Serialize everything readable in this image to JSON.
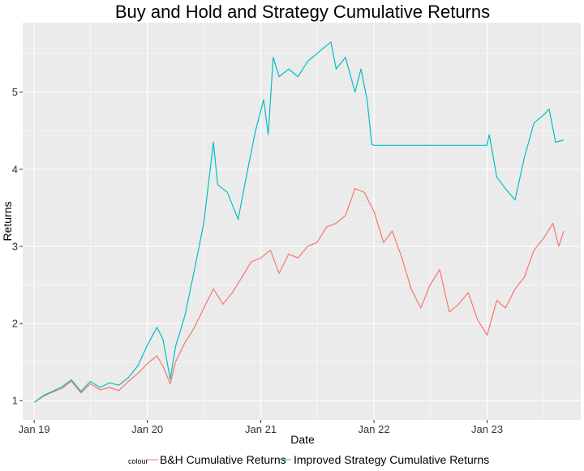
{
  "chart_data": {
    "type": "line",
    "title": "Buy and Hold and Strategy Cumulative Returns",
    "xlabel": "Date",
    "ylabel": "Returns",
    "x_ticks": [
      "Jan 19",
      "Jan 20",
      "Jan 21",
      "Jan 22",
      "Jan 23"
    ],
    "y_ticks": [
      "1",
      "2",
      "3",
      "4",
      "5"
    ],
    "xlim": [
      "2018-11-25",
      "2023-10-30"
    ],
    "ylim": [
      0.75,
      5.9
    ],
    "grid": true,
    "legend": {
      "title": "colour",
      "position": "bottom",
      "entries": [
        "B&H Cumulative Returns",
        "Improved Strategy Cumulative Returns"
      ]
    },
    "series": [
      {
        "name": "B&H Cumulative Returns",
        "color": "#F8766D",
        "points": [
          [
            "2019-01-02",
            0.98
          ],
          [
            "2019-02-01",
            1.06
          ],
          [
            "2019-03-01",
            1.11
          ],
          [
            "2019-04-01",
            1.16
          ],
          [
            "2019-05-01",
            1.25
          ],
          [
            "2019-06-01",
            1.1
          ],
          [
            "2019-07-01",
            1.22
          ],
          [
            "2019-08-01",
            1.14
          ],
          [
            "2019-09-01",
            1.17
          ],
          [
            "2019-10-01",
            1.13
          ],
          [
            "2019-11-01",
            1.25
          ],
          [
            "2019-12-01",
            1.35
          ],
          [
            "2020-01-01",
            1.48
          ],
          [
            "2020-02-01",
            1.58
          ],
          [
            "2020-02-20",
            1.45
          ],
          [
            "2020-03-15",
            1.22
          ],
          [
            "2020-04-01",
            1.5
          ],
          [
            "2020-05-01",
            1.75
          ],
          [
            "2020-06-01",
            1.95
          ],
          [
            "2020-07-01",
            2.2
          ],
          [
            "2020-08-01",
            2.45
          ],
          [
            "2020-09-01",
            2.25
          ],
          [
            "2020-10-01",
            2.4
          ],
          [
            "2020-11-01",
            2.6
          ],
          [
            "2020-12-01",
            2.8
          ],
          [
            "2021-01-01",
            2.85
          ],
          [
            "2021-02-01",
            2.95
          ],
          [
            "2021-03-01",
            2.65
          ],
          [
            "2021-04-01",
            2.9
          ],
          [
            "2021-05-01",
            2.85
          ],
          [
            "2021-06-01",
            3.0
          ],
          [
            "2021-07-01",
            3.05
          ],
          [
            "2021-08-01",
            3.25
          ],
          [
            "2021-09-01",
            3.3
          ],
          [
            "2021-10-01",
            3.4
          ],
          [
            "2021-11-01",
            3.75
          ],
          [
            "2021-12-01",
            3.7
          ],
          [
            "2022-01-01",
            3.45
          ],
          [
            "2022-02-01",
            3.05
          ],
          [
            "2022-03-01",
            3.2
          ],
          [
            "2022-04-01",
            2.85
          ],
          [
            "2022-05-01",
            2.45
          ],
          [
            "2022-06-01",
            2.2
          ],
          [
            "2022-07-01",
            2.5
          ],
          [
            "2022-08-01",
            2.7
          ],
          [
            "2022-09-01",
            2.15
          ],
          [
            "2022-10-01",
            2.25
          ],
          [
            "2022-11-01",
            2.4
          ],
          [
            "2022-12-01",
            2.05
          ],
          [
            "2023-01-01",
            1.85
          ],
          [
            "2023-02-01",
            2.3
          ],
          [
            "2023-03-01",
            2.2
          ],
          [
            "2023-04-01",
            2.45
          ],
          [
            "2023-05-01",
            2.6
          ],
          [
            "2023-06-01",
            2.95
          ],
          [
            "2023-07-01",
            3.1
          ],
          [
            "2023-08-01",
            3.3
          ],
          [
            "2023-08-20",
            3.0
          ],
          [
            "2023-09-05",
            3.2
          ]
        ]
      },
      {
        "name": "Improved Strategy Cumulative Returns",
        "color": "#00BFC4",
        "points": [
          [
            "2019-01-02",
            0.98
          ],
          [
            "2019-02-01",
            1.07
          ],
          [
            "2019-03-01",
            1.12
          ],
          [
            "2019-04-01",
            1.18
          ],
          [
            "2019-05-01",
            1.27
          ],
          [
            "2019-06-01",
            1.12
          ],
          [
            "2019-07-01",
            1.25
          ],
          [
            "2019-08-01",
            1.17
          ],
          [
            "2019-09-01",
            1.23
          ],
          [
            "2019-10-01",
            1.2
          ],
          [
            "2019-11-01",
            1.3
          ],
          [
            "2019-12-01",
            1.45
          ],
          [
            "2020-01-01",
            1.72
          ],
          [
            "2020-02-01",
            1.95
          ],
          [
            "2020-02-20",
            1.8
          ],
          [
            "2020-03-15",
            1.28
          ],
          [
            "2020-04-01",
            1.7
          ],
          [
            "2020-05-01",
            2.1
          ],
          [
            "2020-06-01",
            2.7
          ],
          [
            "2020-07-01",
            3.3
          ],
          [
            "2020-08-01",
            4.35
          ],
          [
            "2020-08-15",
            3.8
          ],
          [
            "2020-09-15",
            3.7
          ],
          [
            "2020-10-20",
            3.35
          ],
          [
            "2020-11-15",
            3.9
          ],
          [
            "2020-12-15",
            4.5
          ],
          [
            "2021-01-10",
            4.9
          ],
          [
            "2021-01-25",
            4.45
          ],
          [
            "2021-02-10",
            5.45
          ],
          [
            "2021-03-01",
            5.2
          ],
          [
            "2021-04-01",
            5.3
          ],
          [
            "2021-05-01",
            5.2
          ],
          [
            "2021-06-01",
            5.4
          ],
          [
            "2021-07-01",
            5.5
          ],
          [
            "2021-08-15",
            5.65
          ],
          [
            "2021-09-01",
            5.3
          ],
          [
            "2021-10-01",
            5.45
          ],
          [
            "2021-11-01",
            5.0
          ],
          [
            "2021-11-20",
            5.3
          ],
          [
            "2021-12-10",
            4.9
          ],
          [
            "2021-12-25",
            4.32
          ],
          [
            "2022-01-01",
            4.31
          ],
          [
            "2022-12-31",
            4.31
          ],
          [
            "2023-01-08",
            4.45
          ],
          [
            "2023-02-01",
            3.9
          ],
          [
            "2023-03-01",
            3.75
          ],
          [
            "2023-04-01",
            3.6
          ],
          [
            "2023-05-01",
            4.15
          ],
          [
            "2023-06-01",
            4.6
          ],
          [
            "2023-07-01",
            4.7
          ],
          [
            "2023-07-20",
            4.78
          ],
          [
            "2023-08-10",
            4.35
          ],
          [
            "2023-09-05",
            4.38
          ]
        ]
      }
    ]
  }
}
